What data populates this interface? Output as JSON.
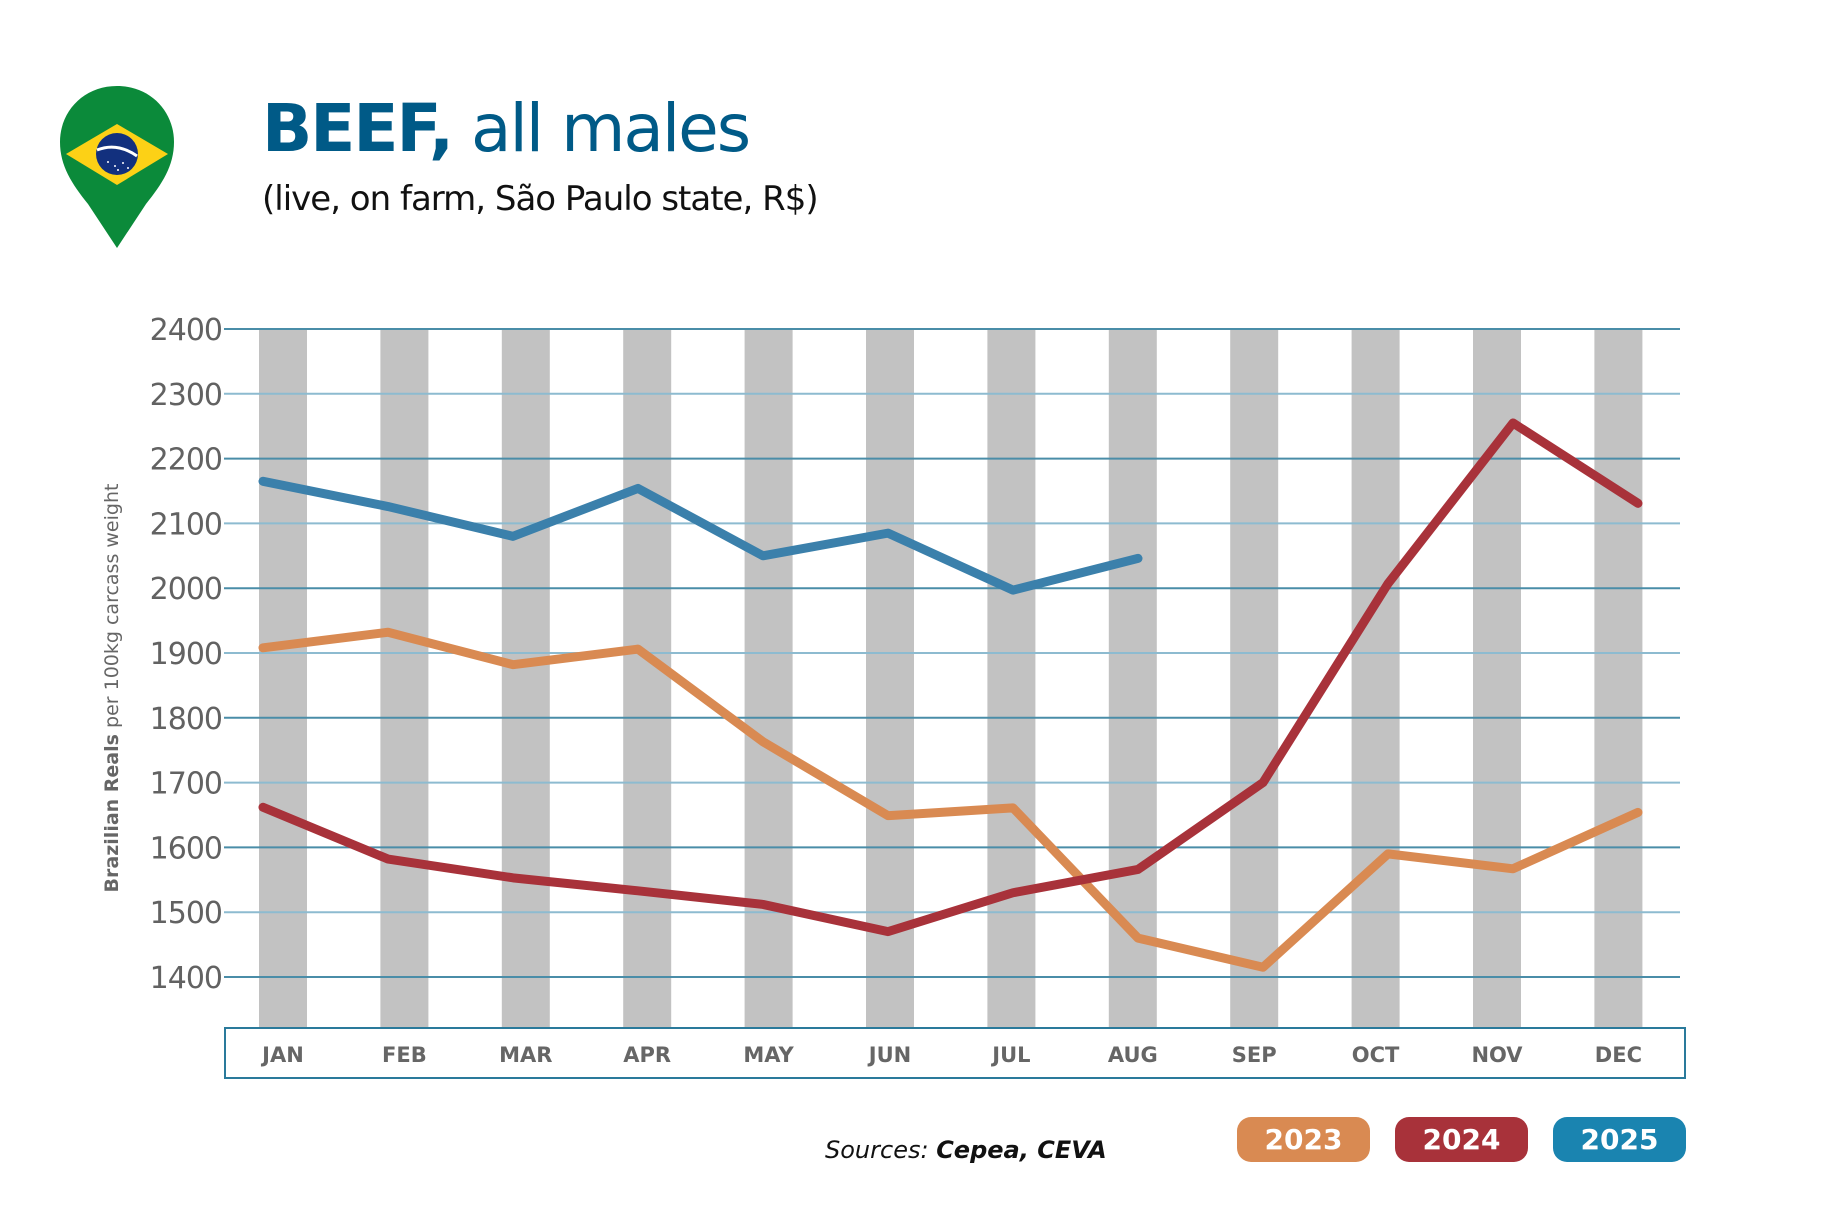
{
  "header": {
    "title_strong": "BEEF,",
    "title_rest": " all males",
    "subtitle": "(live, on farm, São Paulo state, R$)",
    "flag_icon": "brazil-flag-map-pin"
  },
  "footer": {
    "sources_label": "Sources: ",
    "sources_value": "Cepea, CEVA"
  },
  "legend": [
    {
      "label": "2023",
      "color": "#D98A52"
    },
    {
      "label": "2024",
      "color": "#A8323A"
    },
    {
      "label": "2025",
      "color": "#1A84B0"
    }
  ],
  "chart_data": {
    "type": "line",
    "title": "BEEF, all males",
    "subtitle": "(live, on farm, São Paulo state, R$)",
    "xlabel": "",
    "ylabel_strong": "Brazilian Reals",
    "ylabel_rest": " per 100kg carcass weight",
    "categories": [
      "JAN",
      "FEB",
      "MAR",
      "APR",
      "MAY",
      "JUN",
      "JUL",
      "AUG",
      "SEP",
      "OCT",
      "NOV",
      "DEC"
    ],
    "yticks": [
      1400,
      1500,
      1600,
      1700,
      1800,
      1900,
      2000,
      2100,
      2200,
      2300,
      2400
    ],
    "ylim": [
      1320,
      2400
    ],
    "grid": true,
    "legend_position": "bottom-right",
    "series": [
      {
        "name": "2023",
        "color": "#D98A52",
        "values": [
          1908,
          1932,
          1882,
          1906,
          1763,
          1649,
          1661,
          1460,
          1415,
          1590,
          1567,
          1654
        ]
      },
      {
        "name": "2024",
        "color": "#A8323A",
        "values": [
          1662,
          1582,
          1553,
          1533,
          1512,
          1470,
          1530,
          1566,
          1700,
          2007,
          2255,
          2131
        ]
      },
      {
        "name": "2025",
        "color": "#3B80AB",
        "values": [
          2165,
          2126,
          2080,
          2154,
          2050,
          2085,
          1997,
          2046,
          null,
          null,
          null,
          null
        ]
      }
    ]
  }
}
